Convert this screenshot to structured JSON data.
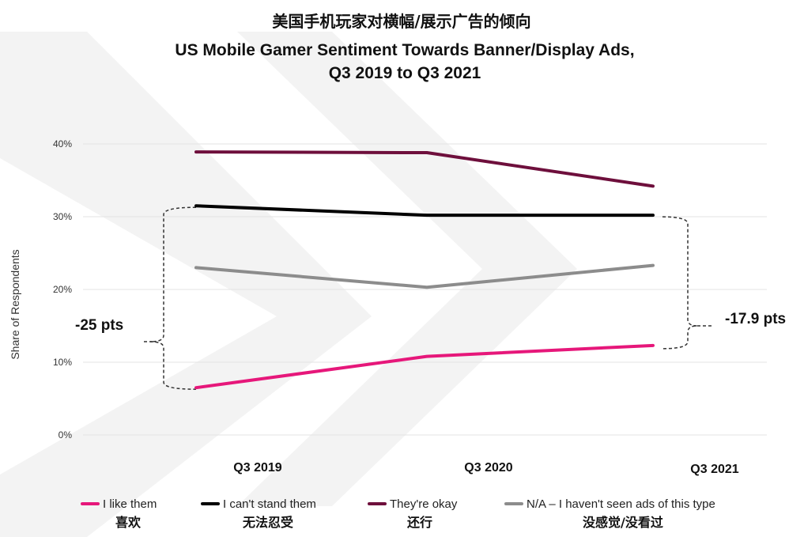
{
  "chart_data": {
    "type": "line",
    "title_cn": "美国手机玩家对横幅/展示广告的倾向",
    "title_lines": [
      "US Mobile Gamer Sentiment Towards Banner/Display Ads,",
      "Q3 2019 to Q3 2021"
    ],
    "ylabel": "Share of Respondents",
    "xlabel": "",
    "ylim": [
      0,
      40
    ],
    "y_ticks": [
      0,
      10,
      20,
      30,
      40
    ],
    "y_tick_labels": [
      "0%",
      "10%",
      "20%",
      "30%",
      "40%"
    ],
    "grid": true,
    "legend_position": "bottom",
    "categories": [
      "Q3 2019",
      "Q3 2020",
      "Q3 2021"
    ],
    "series": [
      {
        "name": "I like them",
        "name_cn": "喜欢",
        "color": "#e6177a",
        "values": [
          6.5,
          10.8,
          12.3
        ]
      },
      {
        "name": "I can't stand them",
        "name_cn": "无法忍受",
        "color": "#000000",
        "values": [
          31.5,
          30.2,
          30.2
        ]
      },
      {
        "name": "They're okay",
        "name_cn": "还行",
        "color": "#6e0f3c",
        "values": [
          38.9,
          38.8,
          34.2
        ]
      },
      {
        "name": "N/A – I haven't seen ads of this type",
        "name_cn": "没感觉/没看过",
        "color": "#8c8c8c",
        "values": [
          23.0,
          20.3,
          23.3
        ]
      }
    ],
    "annotations": [
      {
        "text": "-25 pts",
        "category": "Q3 2019",
        "from": 31.5,
        "to": 6.5
      },
      {
        "text": "-17.9 pts",
        "category": "Q3 2021",
        "from": 30.2,
        "to": 12.3
      }
    ]
  },
  "colors": {
    "grid": "#e3e3e3",
    "watermark": "#f3f3f3",
    "annotation": "#333333"
  }
}
